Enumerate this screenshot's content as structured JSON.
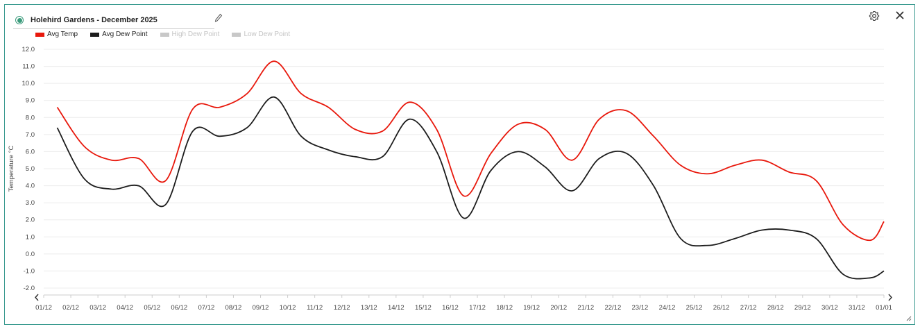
{
  "header": {
    "title": "Holehird Gardens - December 2025"
  },
  "legend": [
    {
      "label": "Avg Temp",
      "color": "#e8180c",
      "active": true
    },
    {
      "label": "Avg Dew Point",
      "color": "#1c1c1c",
      "active": true
    },
    {
      "label": "High Dew Point",
      "color": "#c8c8c8",
      "active": false
    },
    {
      "label": "Low Dew Point",
      "color": "#c8c8c8",
      "active": false
    }
  ],
  "chart_data": {
    "type": "line",
    "ylabel": "Temperature °C",
    "ylim": [
      -2.0,
      12.0
    ],
    "yticks": [
      "12.0",
      "11.0",
      "10.0",
      "9.0",
      "8.0",
      "7.0",
      "6.0",
      "5.0",
      "4.0",
      "3.0",
      "2.0",
      "1.0",
      "0.0",
      "-1.0",
      "-2.0"
    ],
    "categories": [
      "01/12",
      "02/12",
      "03/12",
      "04/12",
      "05/12",
      "06/12",
      "07/12",
      "08/12",
      "09/12",
      "10/12",
      "11/12",
      "12/12",
      "13/12",
      "14/12",
      "15/12",
      "16/12",
      "17/12",
      "18/12",
      "19/12",
      "20/12",
      "21/12",
      "22/12",
      "23/12",
      "24/12",
      "25/12",
      "26/12",
      "27/12",
      "28/12",
      "29/12",
      "30/12",
      "31/12",
      "01/01"
    ],
    "grid": true,
    "legend_position": "top-left",
    "series": [
      {
        "name": "Avg Temp",
        "color": "#e8180c",
        "x": [
          0.5,
          1.5,
          2.5,
          3.5,
          4.5,
          5.5,
          6.5,
          7.5,
          8.5,
          9.5,
          10.5,
          11.5,
          12.5,
          13.5,
          14.5,
          15.5,
          16.5,
          17.5,
          18.5,
          19.5,
          20.5,
          21.5,
          22.5,
          23.5,
          24.5,
          25.5,
          26.5,
          27.5,
          28.5,
          29.5,
          30.5,
          31.0
        ],
        "values": [
          8.6,
          6.3,
          5.5,
          5.6,
          4.3,
          8.5,
          8.6,
          9.4,
          11.3,
          9.4,
          8.6,
          7.3,
          7.2,
          8.9,
          7.3,
          3.4,
          5.9,
          7.6,
          7.3,
          5.5,
          7.9,
          8.4,
          6.9,
          5.2,
          4.7,
          5.2,
          5.5,
          4.8,
          4.3,
          1.7,
          0.8,
          1.9
        ]
      },
      {
        "name": "Avg Dew Point",
        "color": "#1c1c1c",
        "x": [
          0.5,
          1.5,
          2.5,
          3.5,
          4.5,
          5.5,
          6.5,
          7.5,
          8.5,
          9.5,
          10.5,
          11.5,
          12.5,
          13.5,
          14.5,
          15.5,
          16.5,
          17.5,
          18.5,
          19.5,
          20.5,
          21.5,
          22.5,
          23.5,
          24.5,
          25.5,
          26.5,
          27.5,
          28.5,
          29.5,
          30.5,
          31.0
        ],
        "values": [
          7.4,
          4.4,
          3.8,
          4.0,
          2.9,
          7.2,
          6.9,
          7.4,
          9.2,
          6.9,
          6.1,
          5.7,
          5.7,
          7.9,
          6.0,
          2.1,
          4.9,
          6.0,
          5.1,
          3.7,
          5.6,
          5.9,
          4.0,
          0.9,
          0.5,
          0.9,
          1.4,
          1.4,
          0.9,
          -1.2,
          -1.4,
          -1.0
        ]
      }
    ]
  }
}
